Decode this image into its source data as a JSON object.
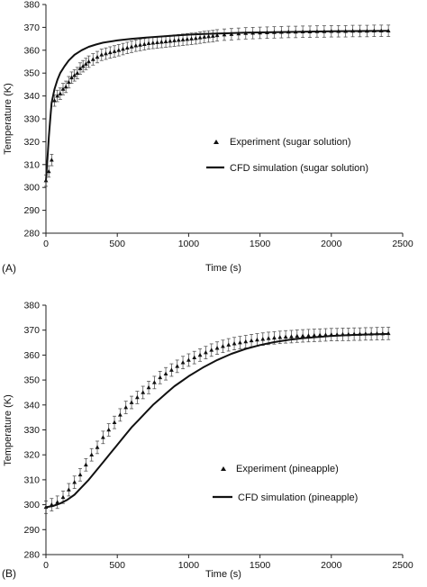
{
  "chart_data": [
    {
      "panel_label": "(A)",
      "type": "line",
      "xlabel": "Time (s)",
      "ylabel": "Temperature (K)",
      "xlim": [
        0,
        2500
      ],
      "ylim": [
        280,
        380
      ],
      "xticks": [
        0,
        500,
        1000,
        1500,
        2000,
        2500
      ],
      "yticks": [
        280,
        290,
        300,
        310,
        320,
        330,
        340,
        350,
        360,
        370,
        380
      ],
      "grid": false,
      "legend_position": "center-right",
      "series": [
        {
          "name": "Experiment (sugar solution)",
          "marker": "triangle",
          "x": [
            0,
            20,
            40,
            60,
            80,
            100,
            120,
            140,
            160,
            180,
            200,
            220,
            240,
            260,
            280,
            300,
            330,
            360,
            390,
            420,
            450,
            480,
            510,
            540,
            570,
            600,
            630,
            660,
            690,
            720,
            750,
            780,
            810,
            840,
            870,
            900,
            930,
            960,
            990,
            1020,
            1050,
            1080,
            1110,
            1140,
            1170,
            1200,
            1250,
            1300,
            1350,
            1400,
            1450,
            1500,
            1550,
            1600,
            1650,
            1700,
            1750,
            1800,
            1850,
            1900,
            1950,
            2000,
            2050,
            2100,
            2150,
            2200,
            2250,
            2300,
            2350,
            2400
          ],
          "y": [
            303,
            307,
            312,
            338,
            340,
            341,
            343,
            344,
            346,
            348,
            349,
            350,
            352,
            353,
            354,
            355,
            356,
            357,
            358,
            358.5,
            359,
            359.5,
            360,
            360.5,
            361,
            361.5,
            362,
            362.3,
            362.6,
            363,
            363.2,
            363.4,
            363.6,
            363.8,
            364,
            364.2,
            364.4,
            364.6,
            364.8,
            365,
            365.2,
            365.5,
            365.8,
            366,
            366.2,
            366.5,
            366.8,
            367,
            367.2,
            367.4,
            367.5,
            367.6,
            367.7,
            367.8,
            367.9,
            368,
            368,
            368.1,
            368.1,
            368.2,
            368.2,
            368.3,
            368.3,
            368.3,
            368.4,
            368.4,
            368.4,
            368.5,
            368.5,
            368.5
          ],
          "error": 2.5
        },
        {
          "name": "CFD simulation (sugar solution)",
          "x": [
            0,
            10,
            20,
            30,
            40,
            60,
            80,
            100,
            130,
            160,
            200,
            250,
            300,
            350,
            400,
            500,
            600,
            700,
            800,
            900,
            1000,
            1100,
            1200,
            1300,
            1400,
            1500,
            1600,
            1800,
            2000,
            2200,
            2400
          ],
          "y": [
            303,
            312,
            322,
            330,
            337,
            343,
            347,
            350,
            353,
            355.5,
            358,
            360,
            361.5,
            362.5,
            363.3,
            364.3,
            365,
            365.5,
            366,
            366.4,
            366.8,
            367.1,
            367.3,
            367.5,
            367.7,
            367.8,
            367.9,
            368.1,
            368.3,
            368.4,
            368.5
          ]
        }
      ]
    },
    {
      "panel_label": "(B)",
      "type": "line",
      "xlabel": "Time (s)",
      "ylabel": "Temperature (K)",
      "xlim": [
        0,
        2500
      ],
      "ylim": [
        280,
        380
      ],
      "xticks": [
        0,
        500,
        1000,
        1500,
        2000,
        2500
      ],
      "yticks": [
        280,
        290,
        300,
        310,
        320,
        330,
        340,
        350,
        360,
        370,
        380
      ],
      "grid": false,
      "legend_position": "center-right",
      "series": [
        {
          "name": "Experiment (pineapple)",
          "marker": "triangle",
          "x": [
            0,
            40,
            80,
            120,
            160,
            200,
            240,
            280,
            320,
            360,
            400,
            440,
            480,
            520,
            560,
            600,
            640,
            680,
            720,
            760,
            800,
            840,
            880,
            920,
            960,
            1000,
            1040,
            1080,
            1120,
            1160,
            1200,
            1240,
            1280,
            1320,
            1360,
            1400,
            1440,
            1480,
            1520,
            1560,
            1600,
            1640,
            1680,
            1720,
            1760,
            1800,
            1840,
            1880,
            1920,
            1960,
            2000,
            2040,
            2080,
            2120,
            2160,
            2200,
            2240,
            2280,
            2320,
            2360,
            2400
          ],
          "y": [
            299,
            300,
            301,
            303,
            306,
            309,
            312,
            316,
            320,
            323,
            327,
            330,
            333,
            336,
            339,
            341,
            343,
            345,
            347,
            349,
            351,
            352.5,
            354,
            355.5,
            357,
            358,
            359,
            360,
            361,
            362,
            362.8,
            363.5,
            364.1,
            364.6,
            365,
            365.4,
            365.8,
            366.1,
            366.4,
            366.7,
            366.9,
            367.1,
            367.3,
            367.4,
            367.6,
            367.7,
            367.8,
            367.9,
            368,
            368.1,
            368.2,
            368.2,
            368.3,
            368.3,
            368.4,
            368.4,
            368.5,
            368.5,
            368.6,
            368.6,
            368.7
          ],
          "error": 2.5
        },
        {
          "name": "CFD simulation (pineapple)",
          "x": [
            0,
            50,
            100,
            150,
            200,
            250,
            300,
            350,
            400,
            450,
            500,
            550,
            600,
            650,
            700,
            750,
            800,
            850,
            900,
            950,
            1000,
            1100,
            1200,
            1300,
            1400,
            1500,
            1600,
            1700,
            1800,
            2000,
            2200,
            2400
          ],
          "y": [
            299,
            299.5,
            300.5,
            302,
            304,
            307,
            310,
            313.5,
            317,
            320.5,
            324,
            327.5,
            331,
            334,
            337,
            340,
            342.5,
            345,
            347.5,
            349.5,
            351.5,
            355,
            358,
            360.5,
            362.5,
            364,
            365.2,
            366.1,
            366.8,
            367.7,
            368.2,
            368.5
          ]
        }
      ]
    }
  ]
}
